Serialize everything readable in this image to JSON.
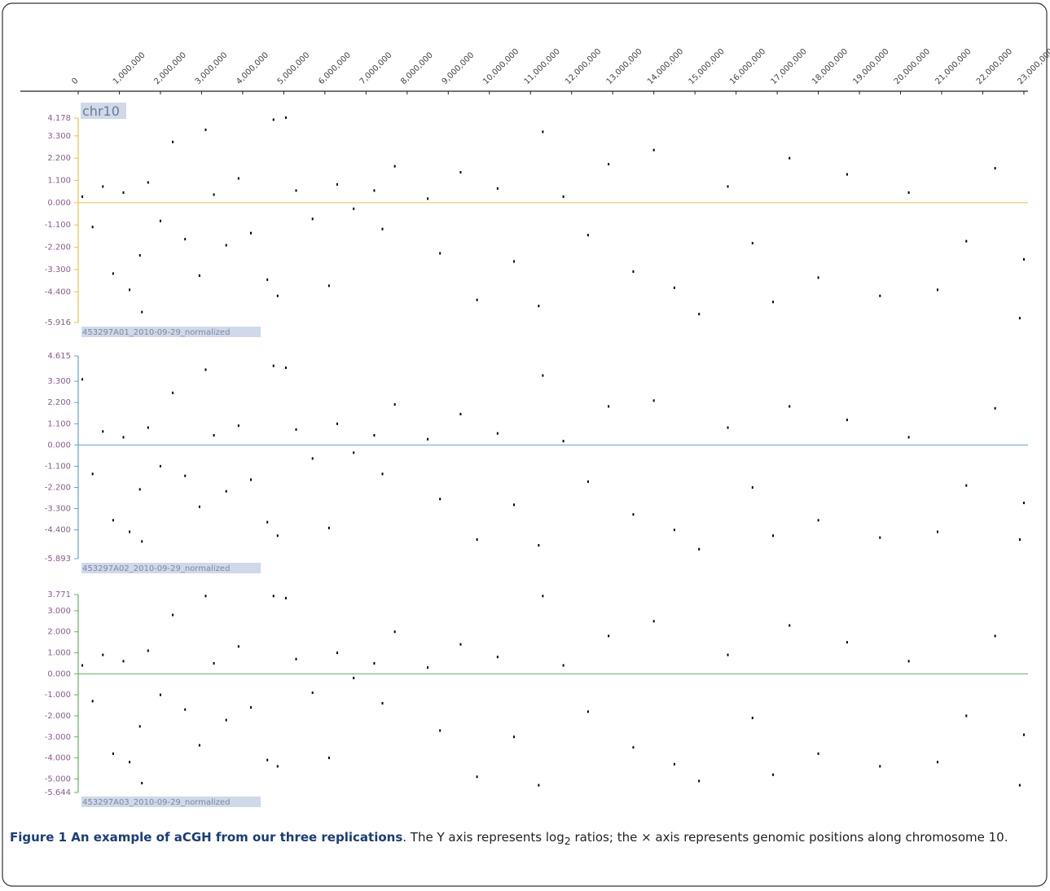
{
  "chart_data": [
    {
      "type": "scatter",
      "title": "chr10",
      "label": "453297A01_2010-09-29_normalized",
      "color": "#f0c040",
      "xlim": [
        0,
        23100000
      ],
      "xticks": [
        0,
        {
          "value": 1000000,
          "label": "1,000,000"
        },
        {
          "value": 2000000,
          "label": "2,000,000"
        },
        {
          "value": 3000000,
          "label": "3,000,000"
        },
        {
          "value": 4000000,
          "label": "4,000,000"
        },
        {
          "value": 5000000,
          "label": "5,000,000"
        },
        {
          "value": 6000000,
          "label": "6,000,000"
        },
        {
          "value": 7000000,
          "label": "7,000,000"
        },
        {
          "value": 8000000,
          "label": "8,000,000"
        },
        {
          "value": 9000000,
          "label": "9,000,000"
        },
        {
          "value": 10000000,
          "label": "10,000,000"
        },
        {
          "value": 11000000,
          "label": "11,000,000"
        },
        {
          "value": 12000000,
          "label": "12,000,000"
        },
        {
          "value": 13000000,
          "label": "13,000,000"
        },
        {
          "value": 14000000,
          "label": "14,000,000"
        },
        {
          "value": 15000000,
          "label": "15,000,000"
        },
        {
          "value": 16000000,
          "label": "16,000,000"
        },
        {
          "value": 17000000,
          "label": "17,000,000"
        },
        {
          "value": 18000000,
          "label": "18,000,000"
        },
        {
          "value": 19000000,
          "label": "19,000,000"
        },
        {
          "value": 20000000,
          "label": "20,000,000"
        },
        {
          "value": 21000000,
          "label": "21,000,000"
        },
        {
          "value": 22000000,
          "label": "22,000,000"
        },
        {
          "value": 23000000,
          "label": "23,000,000"
        }
      ],
      "ylim": [
        -5.916,
        4.178
      ],
      "yticks": [
        4.178,
        {
          "value": 3.3,
          "label": "3.300"
        },
        {
          "value": 2.2,
          "label": "2.200"
        },
        {
          "value": 1.1,
          "label": "1.100"
        },
        {
          "value": 0,
          "label": "0.000"
        },
        {
          "value": -1.1,
          "label": "-1.100"
        },
        {
          "value": -2.2,
          "label": "-2.200"
        },
        {
          "value": -3.3,
          "label": "-3.300"
        },
        {
          "value": -4.4,
          "label": "-4.400"
        },
        -5.916
      ],
      "x": [
        100000,
        350000,
        600000,
        850000,
        1100000,
        1250000,
        1500000,
        1550000,
        1700000,
        2000000,
        2300000,
        2600000,
        2950000,
        3100000,
        3300000,
        3600000,
        3900000,
        4200000,
        4600000,
        4750000,
        4850000,
        5050000,
        5300000,
        5700000,
        6100000,
        6300000,
        6700000,
        7200000,
        7400000,
        7700000,
        8500000,
        8800000,
        9300000,
        9700000,
        10200000,
        10600000,
        11200000,
        11300000,
        11800000,
        12400000,
        12900000,
        13500000,
        14000000,
        14500000,
        15100000,
        15800000,
        16400000,
        16900000,
        17300000,
        18000000,
        18700000,
        19500000,
        20200000,
        20900000,
        21600000,
        22300000,
        22900000,
        23000000
      ],
      "y": [
        0.3,
        -1.2,
        0.8,
        -3.5,
        0.5,
        -4.3,
        -2.6,
        -5.4,
        1.0,
        -0.9,
        3.0,
        -1.8,
        -3.6,
        3.6,
        0.4,
        -2.1,
        1.2,
        -1.5,
        -3.8,
        4.1,
        -4.6,
        4.2,
        0.6,
        -0.8,
        -4.1,
        0.9,
        -0.3,
        0.6,
        -1.3,
        1.8,
        0.2,
        -2.5,
        1.5,
        -4.8,
        0.7,
        -2.9,
        -5.1,
        3.5,
        0.3,
        -1.6,
        1.9,
        -3.4,
        2.6,
        -4.2,
        -5.5,
        0.8,
        -2.0,
        -4.9,
        2.2,
        -3.7,
        1.4,
        -4.6,
        0.5,
        -4.3,
        -1.9,
        1.7,
        -5.7,
        -2.8
      ]
    },
    {
      "type": "scatter",
      "label": "453297A02_2010-09-29_normalized",
      "color": "#5aa8d8",
      "xlim": [
        0,
        23100000
      ],
      "ylim": [
        -5.893,
        4.615
      ],
      "yticks": [
        4.615,
        {
          "value": 3.3,
          "label": "3.300"
        },
        {
          "value": 2.2,
          "label": "2.200"
        },
        {
          "value": 1.1,
          "label": "1.100"
        },
        {
          "value": 0,
          "label": "0.000"
        },
        {
          "value": -1.1,
          "label": "-1.100"
        },
        {
          "value": -2.2,
          "label": "-2.200"
        },
        {
          "value": -3.3,
          "label": "-3.300"
        },
        {
          "value": -4.4,
          "label": "-4.400"
        },
        -5.893
      ],
      "x": [
        100000,
        350000,
        600000,
        850000,
        1100000,
        1250000,
        1500000,
        1550000,
        1700000,
        2000000,
        2300000,
        2600000,
        2950000,
        3100000,
        3300000,
        3600000,
        3900000,
        4200000,
        4600000,
        4750000,
        4850000,
        5050000,
        5300000,
        5700000,
        6100000,
        6300000,
        6700000,
        7200000,
        7400000,
        7700000,
        8500000,
        8800000,
        9300000,
        9700000,
        10200000,
        10600000,
        11200000,
        11300000,
        11800000,
        12400000,
        12900000,
        13500000,
        14000000,
        14500000,
        15100000,
        15800000,
        16400000,
        16900000,
        17300000,
        18000000,
        18700000,
        19500000,
        20200000,
        20900000,
        21600000,
        22300000,
        22900000,
        23000000
      ],
      "y": [
        3.4,
        -1.5,
        0.7,
        -3.9,
        0.4,
        -4.5,
        -2.3,
        -5.0,
        0.9,
        -1.1,
        2.7,
        -1.6,
        -3.2,
        3.9,
        0.5,
        -2.4,
        1.0,
        -1.8,
        -4.0,
        4.1,
        -4.7,
        4.0,
        0.8,
        -0.7,
        -4.3,
        1.1,
        -0.4,
        0.5,
        -1.5,
        2.1,
        0.3,
        -2.8,
        1.6,
        -4.9,
        0.6,
        -3.1,
        -5.2,
        3.6,
        0.2,
        -1.9,
        2.0,
        -3.6,
        2.3,
        -4.4,
        -5.4,
        0.9,
        -2.2,
        -4.7,
        2.0,
        -3.9,
        1.3,
        -4.8,
        0.4,
        -4.5,
        -2.1,
        1.9,
        -4.9,
        -3.0
      ]
    },
    {
      "type": "scatter",
      "label": "453297A03_2010-09-29_normalized",
      "color": "#5cb85c",
      "xlim": [
        0,
        23100000
      ],
      "ylim": [
        -5.644,
        3.771
      ],
      "yticks": [
        3.771,
        {
          "value": 3,
          "label": "3.000"
        },
        {
          "value": 2,
          "label": "2.000"
        },
        {
          "value": 1,
          "label": "1.000"
        },
        {
          "value": 0,
          "label": "0.000"
        },
        {
          "value": -1,
          "label": "-1.000"
        },
        {
          "value": -2,
          "label": "-2.000"
        },
        {
          "value": -3,
          "label": "-3.000"
        },
        {
          "value": -4,
          "label": "-4.000"
        },
        {
          "value": -5,
          "label": "-5.000"
        },
        -5.644
      ],
      "x": [
        100000,
        350000,
        600000,
        850000,
        1100000,
        1250000,
        1500000,
        1550000,
        1700000,
        2000000,
        2300000,
        2600000,
        2950000,
        3100000,
        3300000,
        3600000,
        3900000,
        4200000,
        4600000,
        4750000,
        4850000,
        5050000,
        5300000,
        5700000,
        6100000,
        6300000,
        6700000,
        7200000,
        7400000,
        7700000,
        8500000,
        8800000,
        9300000,
        9700000,
        10200000,
        10600000,
        11200000,
        11300000,
        11800000,
        12400000,
        12900000,
        13500000,
        14000000,
        14500000,
        15100000,
        15800000,
        16400000,
        16900000,
        17300000,
        18000000,
        18700000,
        19500000,
        20200000,
        20900000,
        21600000,
        22300000,
        22900000,
        23000000
      ],
      "y": [
        0.4,
        -1.3,
        0.9,
        -3.8,
        0.6,
        -4.2,
        -2.5,
        -5.2,
        1.1,
        -1.0,
        2.8,
        -1.7,
        -3.4,
        3.7,
        0.5,
        -2.2,
        1.3,
        -1.6,
        -4.1,
        3.7,
        -4.4,
        3.6,
        0.7,
        -0.9,
        -4.0,
        1.0,
        -0.2,
        0.5,
        -1.4,
        2.0,
        0.3,
        -2.7,
        1.4,
        -4.9,
        0.8,
        -3.0,
        -5.3,
        3.7,
        0.4,
        -1.8,
        1.8,
        -3.5,
        2.5,
        -4.3,
        -5.1,
        0.9,
        -2.1,
        -4.8,
        2.3,
        -3.8,
        1.5,
        -4.4,
        0.6,
        -4.2,
        -2.0,
        1.8,
        -5.3,
        -2.9
      ]
    }
  ],
  "caption": {
    "label": "Figure 1 An example of aCGH from our three replications",
    "text": ". The Y axis represents log",
    "sub": "2",
    "text2": " ratios; the × axis represents genomic positions along chromosome 10."
  }
}
